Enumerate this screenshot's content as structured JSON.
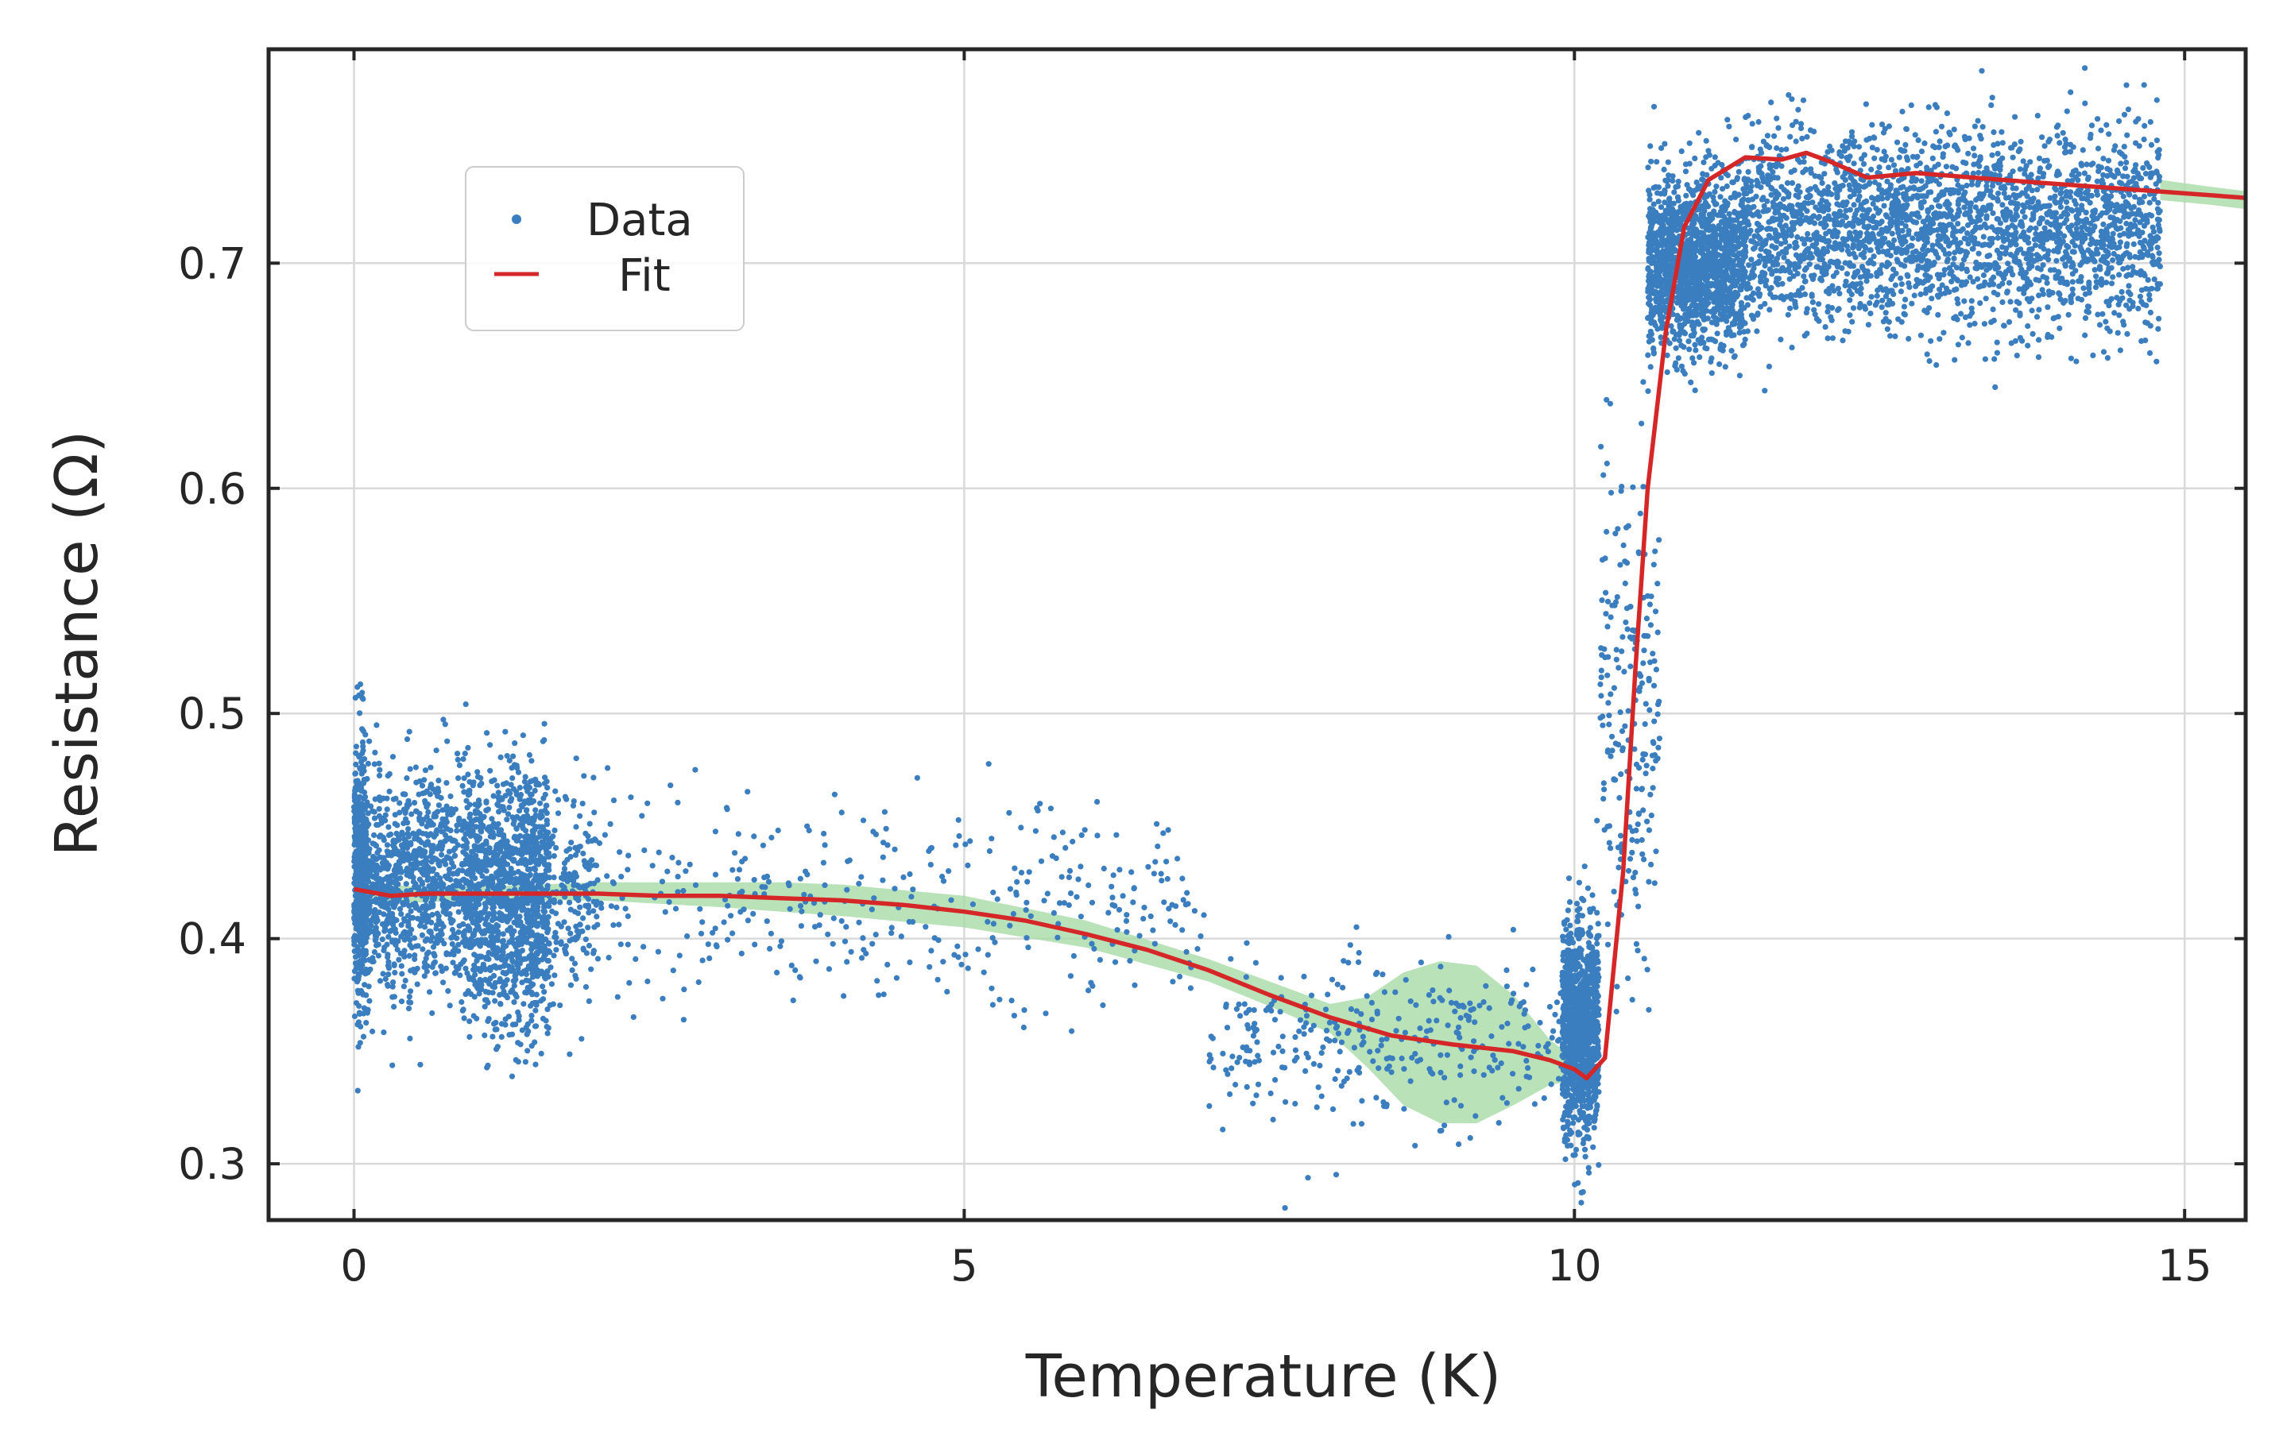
{
  "chart_data": {
    "type": "scatter",
    "title": "",
    "xlabel": "Temperature (K)",
    "ylabel": "Resistance (Ω)",
    "xlim": [
      -0.7,
      15.5
    ],
    "ylim": [
      0.275,
      0.795
    ],
    "xticks": [
      0,
      5,
      10,
      15
    ],
    "yticks": [
      0.3,
      0.4,
      0.5,
      0.6,
      0.7
    ],
    "xtick_labels": [
      "0",
      "5",
      "10",
      "15"
    ],
    "ytick_labels": [
      "0.3",
      "0.4",
      "0.5",
      "0.6",
      "0.7"
    ],
    "grid": true,
    "legend": {
      "placement": "upper-left",
      "entries": [
        {
          "label": "Data",
          "marker": "point",
          "color": "#3a7ebf"
        },
        {
          "label": "Fit",
          "marker": "line",
          "color": "#d62728"
        }
      ]
    },
    "series": [
      {
        "name": "Data",
        "kind": "scatter",
        "color": "#3a7ebf",
        "clusters": [
          {
            "x_range": [
              0.0,
              0.1
            ],
            "y_center": 0.43,
            "y_spread": 0.055,
            "count": 500
          },
          {
            "x_range": [
              0.1,
              0.9
            ],
            "y_center": 0.425,
            "y_spread": 0.045,
            "count": 900
          },
          {
            "x_range": [
              0.9,
              1.6
            ],
            "y_center": 0.42,
            "y_spread": 0.05,
            "count": 1300
          },
          {
            "x_range": [
              1.6,
              2.0
            ],
            "y_center": 0.42,
            "y_spread": 0.04,
            "count": 180
          },
          {
            "x_range": [
              2.0,
              7.0
            ],
            "y_center": 0.415,
            "y_spread": 0.04,
            "count": 380
          },
          {
            "x_range": [
              7.0,
              10.0
            ],
            "y_center": 0.355,
            "y_spread": 0.035,
            "count": 330
          },
          {
            "x_range": [
              9.9,
              10.2
            ],
            "y_center": 0.36,
            "y_spread": 0.045,
            "count": 1000
          },
          {
            "x_range": [
              10.2,
              10.7
            ],
            "y_center": 0.5,
            "y_spread": 0.1,
            "count": 220
          },
          {
            "x_range": [
              10.6,
              11.4
            ],
            "y_center": 0.7,
            "y_spread": 0.035,
            "count": 1500
          },
          {
            "x_range": [
              11.4,
              14.8
            ],
            "y_center": 0.715,
            "y_spread": 0.04,
            "count": 2600
          }
        ]
      },
      {
        "name": "Fit",
        "kind": "line",
        "color": "#d62728",
        "x": [
          0.0,
          0.3,
          0.6,
          1.0,
          1.5,
          2.0,
          2.5,
          3.0,
          3.5,
          4.0,
          4.5,
          5.0,
          5.5,
          6.0,
          6.5,
          7.0,
          7.5,
          8.0,
          8.5,
          9.0,
          9.5,
          9.8,
          10.0,
          10.1,
          10.25,
          10.4,
          10.5,
          10.6,
          10.75,
          10.9,
          11.1,
          11.4,
          11.7,
          11.9,
          12.1,
          12.4,
          12.8,
          13.5,
          14.5,
          15.5
        ],
        "y": [
          0.422,
          0.419,
          0.42,
          0.42,
          0.42,
          0.42,
          0.419,
          0.419,
          0.418,
          0.417,
          0.415,
          0.412,
          0.408,
          0.402,
          0.395,
          0.386,
          0.375,
          0.365,
          0.357,
          0.353,
          0.35,
          0.346,
          0.342,
          0.338,
          0.347,
          0.43,
          0.52,
          0.6,
          0.67,
          0.716,
          0.737,
          0.747,
          0.746,
          0.749,
          0.745,
          0.738,
          0.74,
          0.737,
          0.733,
          0.729
        ]
      },
      {
        "name": "Fit uncertainty",
        "kind": "band",
        "color": "#a8dba8",
        "x": [
          0.0,
          0.5,
          1.0,
          2.0,
          3.0,
          3.5,
          4.0,
          5.0,
          6.0,
          7.0,
          7.5,
          8.0,
          8.3,
          8.6,
          8.9,
          9.2,
          9.5,
          9.8,
          10.0
        ],
        "lower": [
          0.418,
          0.416,
          0.417,
          0.417,
          0.414,
          0.412,
          0.41,
          0.405,
          0.396,
          0.381,
          0.37,
          0.358,
          0.343,
          0.326,
          0.318,
          0.318,
          0.326,
          0.335,
          0.337
        ],
        "upper": [
          0.426,
          0.423,
          0.423,
          0.425,
          0.425,
          0.425,
          0.424,
          0.419,
          0.408,
          0.391,
          0.381,
          0.371,
          0.374,
          0.385,
          0.39,
          0.388,
          0.375,
          0.355,
          0.347
        ]
      },
      {
        "name": "Fit uncertainty (high)",
        "kind": "band",
        "color": "#a8dba8",
        "x": [
          14.8,
          15.2,
          15.5
        ],
        "lower": [
          0.728,
          0.726,
          0.724
        ],
        "upper": [
          0.737,
          0.734,
          0.732
        ]
      }
    ]
  }
}
